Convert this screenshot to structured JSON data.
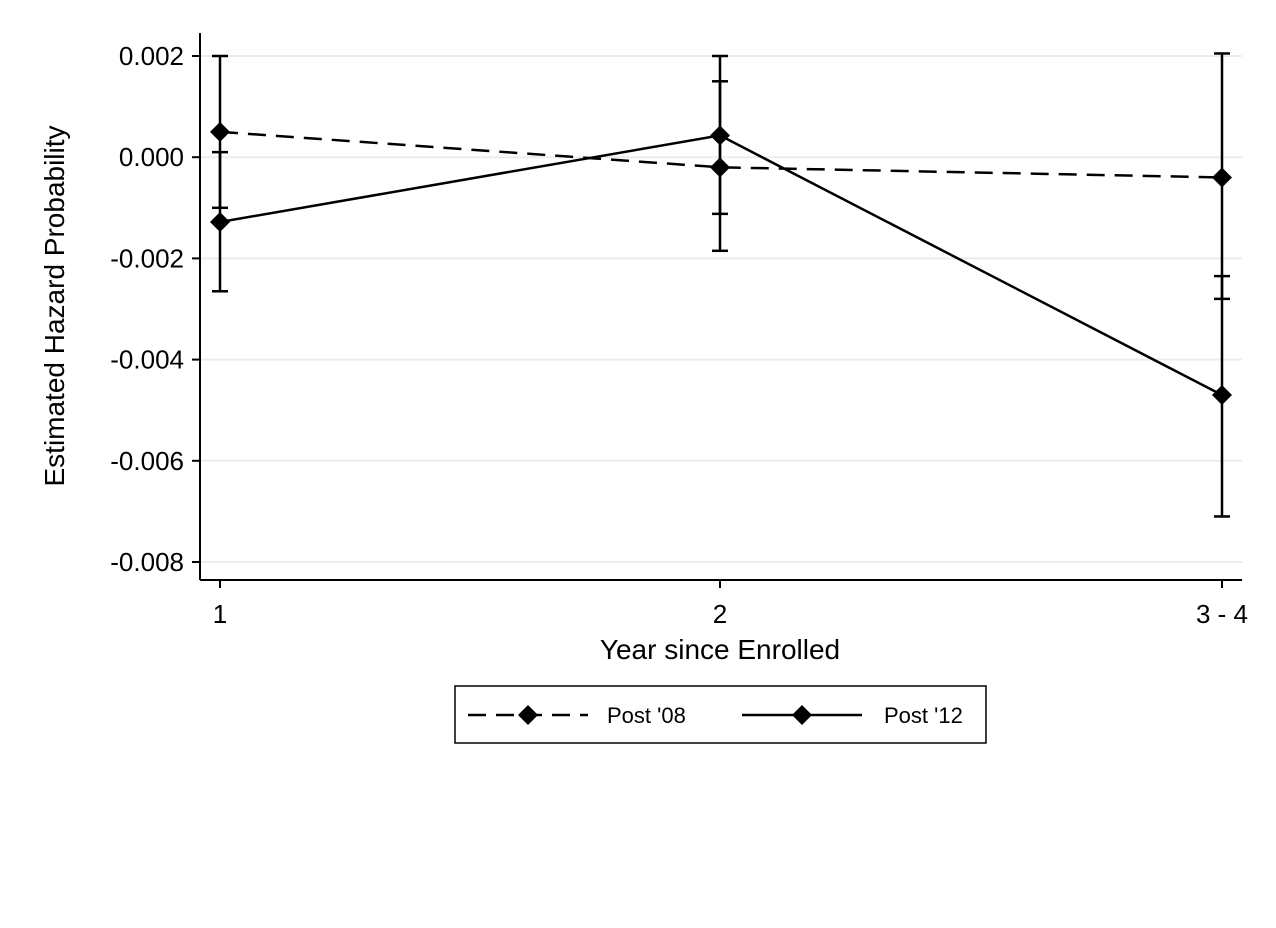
{
  "chart_data": {
    "type": "line",
    "title": "",
    "xlabel": "Year since Enrolled",
    "ylabel": "Estimated Hazard Probability",
    "categories": [
      "1",
      "2",
      "3 - 4"
    ],
    "ylim": [
      -0.008,
      0.002
    ],
    "yticks": [
      0.002,
      0.0,
      -0.002,
      -0.004,
      -0.006,
      -0.008
    ],
    "ytick_labels": [
      "0.002",
      "0.000",
      "-0.002",
      "-0.004",
      "-0.006",
      "-0.008"
    ],
    "grid": true,
    "legend_position": "bottom",
    "series": [
      {
        "name": "Post '08",
        "line_style": "dashed",
        "marker": "diamond",
        "color": "#000000",
        "values": [
          0.0005,
          -0.0002,
          -0.0004
        ],
        "ci_low": [
          -0.001,
          -0.00185,
          -0.0028
        ],
        "ci_high": [
          0.002,
          0.0015,
          0.00205
        ]
      },
      {
        "name": "Post '12",
        "line_style": "solid",
        "marker": "diamond",
        "color": "#000000",
        "values": [
          -0.00128,
          0.00043,
          -0.0047
        ],
        "ci_low": [
          -0.00265,
          -0.00112,
          -0.0071
        ],
        "ci_high": [
          0.0001,
          0.002,
          -0.00235
        ]
      }
    ]
  }
}
